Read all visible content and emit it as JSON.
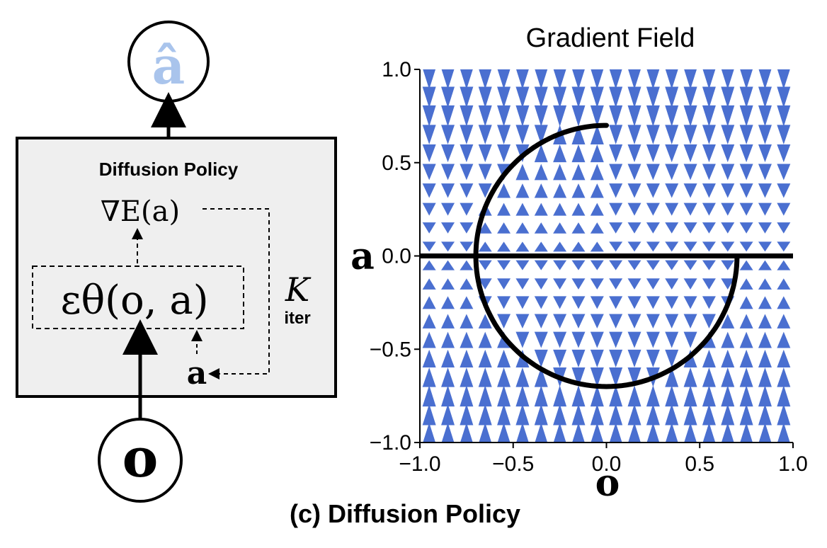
{
  "diagram": {
    "output_node_label": "â",
    "box_title": "Diffusion Policy",
    "grad_energy_label": "∇E(a)",
    "noise_predictor_label": "εθ(o, a)",
    "action_label": "a",
    "iteration_label_k": "K",
    "iteration_label_sub": "iter",
    "input_node_label": "o",
    "caption": "(c) Diffusion Policy"
  },
  "chart_data": {
    "type": "quiver",
    "title": "Gradient Field",
    "xlabel": "o",
    "ylabel": "a",
    "xlim": [
      -1.0,
      1.0
    ],
    "ylim": [
      -1.0,
      1.0
    ],
    "xticks": [
      "−1.0",
      "−0.5",
      "0.0",
      "0.5",
      "1.0"
    ],
    "yticks": [
      "−1.0",
      "−0.5",
      "0.0",
      "0.5",
      "1.0"
    ],
    "field_color": "#4a6fd0",
    "grid_x": [
      -0.95,
      -0.85,
      -0.75,
      -0.65,
      -0.55,
      -0.45,
      -0.35,
      -0.25,
      -0.15,
      -0.05,
      0.05,
      0.15,
      0.25,
      0.35,
      0.45,
      0.55,
      0.65,
      0.75,
      0.85,
      0.95
    ],
    "grid_y": [
      0.95,
      0.85,
      0.75,
      0.65,
      0.55,
      0.45,
      0.35,
      0.25,
      0.15,
      0.05,
      -0.05,
      -0.15,
      -0.25,
      -0.35,
      -0.45,
      -0.55,
      -0.65,
      -0.75,
      -0.85,
      -0.95
    ],
    "curves": [
      {
        "name": "",
        "shape": "half-circle-upper-left",
        "center": [
          0,
          0
        ],
        "radius": 0.7,
        "from_deg": 90,
        "to_deg": 180
      },
      {
        "name": "",
        "shape": "horizontal-line",
        "y": 0.0,
        "x_from": -1.0,
        "x_to": 1.0
      },
      {
        "name": "",
        "shape": "half-circle-lower",
        "center": [
          0,
          0
        ],
        "radius": 0.7,
        "from_deg": 180,
        "to_deg": 360
      }
    ]
  }
}
